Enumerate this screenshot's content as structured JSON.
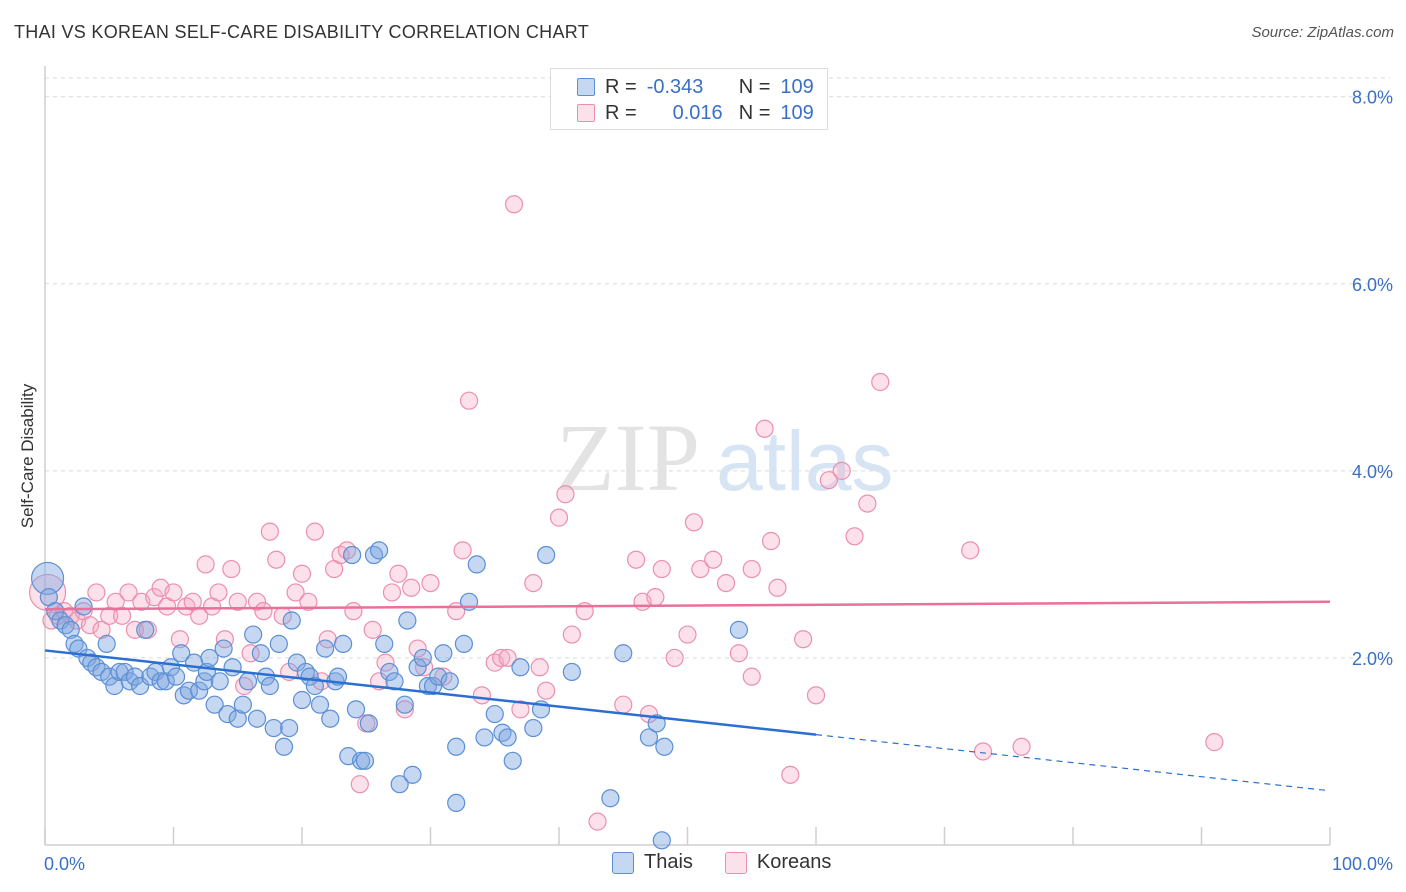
{
  "title": "THAI VS KOREAN SELF-CARE DISABILITY CORRELATION CHART",
  "source": "Source: ZipAtlas.com",
  "watermark": {
    "zip": "ZIP",
    "atlas": "atlas"
  },
  "legend": {
    "rows": [
      {
        "r_label": "R =",
        "r_value": "-0.343",
        "n_label": "N =",
        "n_value": "109",
        "color": "#7ea6e0"
      },
      {
        "r_label": "R =",
        "r_value": "0.016",
        "n_label": "N =",
        "n_value": "109",
        "color": "#f29ab7"
      }
    ]
  },
  "bottom_legend": {
    "thais": "Thais",
    "koreans": "Koreans"
  },
  "colors": {
    "thais_fill": "rgba(126,166,224,0.45)",
    "thais_stroke": "#5b8fd6",
    "thais_line": "#2a6fd1",
    "koreans_fill": "rgba(245,170,195,0.35)",
    "koreans_stroke": "#ec8fae",
    "koreans_line": "#e8709a",
    "axis_text": "#3b6fc7",
    "grid": "#d9d9d9"
  },
  "chart_data": {
    "type": "scatter",
    "title": "THAI VS KOREAN SELF-CARE DISABILITY CORRELATION CHART",
    "xlabel": "",
    "ylabel": "Self-Care Disability",
    "xlim": [
      0,
      100
    ],
    "ylim": [
      0,
      8.0
    ],
    "x_tick_labels": [
      "0.0%",
      "100.0%"
    ],
    "y_ticks": [
      2.0,
      4.0,
      6.0,
      8.0
    ],
    "y_tick_labels": [
      "2.0%",
      "4.0%",
      "6.0%",
      "8.0%"
    ],
    "grid": true,
    "legend_placement": "top-center",
    "series": [
      {
        "name": "Thais",
        "r": -0.343,
        "n": 109,
        "trend": {
          "x0": 0,
          "y0": 2.08,
          "x1": 60,
          "y1": 1.18,
          "dash_to": 100,
          "dash_y": 0.58
        },
        "points": [
          [
            0.2,
            2.85
          ],
          [
            0.3,
            2.65
          ],
          [
            0.8,
            2.5
          ],
          [
            1.2,
            2.4
          ],
          [
            1.6,
            2.35
          ],
          [
            2.0,
            2.3
          ],
          [
            2.3,
            2.15
          ],
          [
            2.6,
            2.1
          ],
          [
            3.0,
            2.55
          ],
          [
            3.3,
            2.0
          ],
          [
            3.6,
            1.95
          ],
          [
            4.0,
            1.9
          ],
          [
            4.4,
            1.85
          ],
          [
            4.8,
            2.15
          ],
          [
            5.0,
            1.8
          ],
          [
            5.4,
            1.7
          ],
          [
            5.8,
            1.85
          ],
          [
            6.2,
            1.85
          ],
          [
            6.6,
            1.75
          ],
          [
            7.0,
            1.8
          ],
          [
            7.4,
            1.7
          ],
          [
            7.8,
            2.3
          ],
          [
            8.2,
            1.8
          ],
          [
            8.6,
            1.85
          ],
          [
            9.0,
            1.75
          ],
          [
            9.4,
            1.75
          ],
          [
            9.8,
            1.9
          ],
          [
            10.2,
            1.8
          ],
          [
            10.6,
            2.05
          ],
          [
            10.8,
            1.6
          ],
          [
            11.2,
            1.65
          ],
          [
            11.6,
            1.95
          ],
          [
            12.0,
            1.65
          ],
          [
            12.4,
            1.75
          ],
          [
            12.6,
            1.85
          ],
          [
            12.8,
            2.0
          ],
          [
            13.2,
            1.5
          ],
          [
            13.6,
            1.75
          ],
          [
            13.9,
            2.1
          ],
          [
            14.2,
            1.4
          ],
          [
            14.6,
            1.9
          ],
          [
            15.0,
            1.35
          ],
          [
            15.4,
            1.5
          ],
          [
            15.8,
            1.75
          ],
          [
            16.2,
            2.25
          ],
          [
            16.5,
            1.35
          ],
          [
            16.8,
            2.05
          ],
          [
            17.2,
            1.8
          ],
          [
            17.5,
            1.7
          ],
          [
            17.8,
            1.25
          ],
          [
            18.2,
            2.15
          ],
          [
            18.6,
            1.05
          ],
          [
            19.0,
            1.25
          ],
          [
            19.2,
            2.4
          ],
          [
            19.6,
            1.95
          ],
          [
            20.0,
            1.55
          ],
          [
            20.3,
            1.85
          ],
          [
            20.6,
            1.8
          ],
          [
            21.0,
            1.7
          ],
          [
            21.4,
            1.5
          ],
          [
            21.8,
            2.1
          ],
          [
            22.2,
            1.35
          ],
          [
            22.6,
            1.75
          ],
          [
            22.8,
            1.8
          ],
          [
            23.2,
            2.15
          ],
          [
            23.6,
            0.95
          ],
          [
            23.9,
            3.1
          ],
          [
            24.2,
            1.45
          ],
          [
            24.6,
            0.9
          ],
          [
            24.9,
            0.9
          ],
          [
            25.2,
            1.3
          ],
          [
            25.6,
            3.1
          ],
          [
            26.0,
            3.15
          ],
          [
            26.4,
            2.15
          ],
          [
            26.8,
            1.85
          ],
          [
            27.2,
            1.75
          ],
          [
            27.6,
            0.65
          ],
          [
            28.0,
            1.5
          ],
          [
            28.2,
            2.4
          ],
          [
            28.6,
            0.75
          ],
          [
            29.0,
            1.9
          ],
          [
            29.4,
            2.0
          ],
          [
            29.8,
            1.7
          ],
          [
            30.2,
            1.7
          ],
          [
            30.6,
            1.8
          ],
          [
            31.0,
            2.05
          ],
          [
            31.5,
            1.75
          ],
          [
            32.0,
            1.05
          ],
          [
            32.6,
            2.15
          ],
          [
            33.0,
            2.6
          ],
          [
            33.6,
            3.0
          ],
          [
            34.2,
            1.15
          ],
          [
            35.0,
            1.4
          ],
          [
            35.6,
            1.2
          ],
          [
            36.0,
            1.15
          ],
          [
            36.4,
            0.9
          ],
          [
            37.0,
            1.9
          ],
          [
            38.0,
            1.25
          ],
          [
            38.6,
            1.45
          ],
          [
            39.0,
            3.1
          ],
          [
            44.0,
            0.5
          ],
          [
            45.0,
            2.05
          ],
          [
            47.0,
            1.15
          ],
          [
            47.6,
            1.3
          ],
          [
            48.0,
            0.05
          ],
          [
            48.2,
            1.05
          ],
          [
            54.0,
            2.3
          ],
          [
            32.0,
            0.45
          ],
          [
            41.0,
            1.85
          ]
        ]
      },
      {
        "name": "Koreans",
        "r": 0.016,
        "n": 109,
        "trend": {
          "x0": 0,
          "y0": 2.52,
          "x1": 100,
          "y1": 2.6
        },
        "points": [
          [
            0.2,
            2.7
          ],
          [
            0.5,
            2.4
          ],
          [
            1.0,
            2.45
          ],
          [
            1.5,
            2.5
          ],
          [
            2.0,
            2.45
          ],
          [
            2.5,
            2.4
          ],
          [
            3.0,
            2.5
          ],
          [
            3.5,
            2.35
          ],
          [
            4.0,
            2.7
          ],
          [
            4.4,
            2.3
          ],
          [
            5.0,
            2.45
          ],
          [
            5.5,
            2.6
          ],
          [
            6.0,
            2.45
          ],
          [
            6.5,
            2.7
          ],
          [
            7.0,
            2.3
          ],
          [
            7.5,
            2.6
          ],
          [
            8.0,
            2.3
          ],
          [
            8.5,
            2.65
          ],
          [
            9.0,
            2.75
          ],
          [
            9.5,
            2.55
          ],
          [
            10.0,
            2.7
          ],
          [
            10.5,
            2.2
          ],
          [
            11.0,
            2.55
          ],
          [
            11.5,
            2.6
          ],
          [
            12.0,
            2.45
          ],
          [
            12.5,
            3.0
          ],
          [
            13.0,
            2.55
          ],
          [
            13.5,
            2.7
          ],
          [
            14.0,
            2.2
          ],
          [
            14.5,
            2.95
          ],
          [
            15.0,
            2.6
          ],
          [
            15.5,
            1.7
          ],
          [
            16.0,
            2.05
          ],
          [
            16.5,
            2.6
          ],
          [
            17.0,
            2.5
          ],
          [
            17.5,
            3.35
          ],
          [
            18.0,
            3.05
          ],
          [
            18.5,
            2.45
          ],
          [
            19.0,
            1.85
          ],
          [
            19.5,
            2.7
          ],
          [
            20.0,
            2.9
          ],
          [
            20.5,
            2.6
          ],
          [
            21.0,
            3.35
          ],
          [
            21.5,
            1.75
          ],
          [
            22.0,
            2.2
          ],
          [
            22.5,
            2.95
          ],
          [
            23.0,
            3.1
          ],
          [
            23.5,
            3.15
          ],
          [
            24.0,
            2.5
          ],
          [
            24.5,
            0.65
          ],
          [
            25.0,
            1.3
          ],
          [
            25.5,
            2.3
          ],
          [
            26.0,
            1.75
          ],
          [
            26.5,
            1.95
          ],
          [
            27.0,
            2.7
          ],
          [
            27.5,
            2.9
          ],
          [
            28.0,
            1.45
          ],
          [
            28.5,
            2.75
          ],
          [
            29.0,
            2.1
          ],
          [
            29.5,
            1.9
          ],
          [
            30.0,
            2.8
          ],
          [
            31.0,
            1.8
          ],
          [
            32.0,
            2.5
          ],
          [
            32.5,
            3.15
          ],
          [
            33.0,
            4.75
          ],
          [
            34.0,
            1.6
          ],
          [
            35.0,
            1.95
          ],
          [
            35.5,
            2.0
          ],
          [
            36.0,
            2.0
          ],
          [
            36.5,
            6.85
          ],
          [
            37.0,
            1.45
          ],
          [
            38.0,
            2.8
          ],
          [
            38.5,
            1.9
          ],
          [
            39.0,
            1.65
          ],
          [
            40.0,
            3.5
          ],
          [
            40.5,
            3.75
          ],
          [
            41.0,
            2.25
          ],
          [
            42.0,
            2.5
          ],
          [
            43.0,
            0.25
          ],
          [
            45.0,
            1.5
          ],
          [
            46.0,
            3.05
          ],
          [
            46.5,
            2.6
          ],
          [
            47.0,
            1.4
          ],
          [
            47.5,
            2.65
          ],
          [
            48.0,
            2.95
          ],
          [
            49.0,
            2.0
          ],
          [
            50.0,
            2.25
          ],
          [
            50.5,
            3.45
          ],
          [
            51.0,
            2.95
          ],
          [
            52.0,
            3.05
          ],
          [
            53.0,
            2.8
          ],
          [
            54.0,
            2.05
          ],
          [
            55.0,
            2.95
          ],
          [
            56.0,
            4.45
          ],
          [
            56.5,
            3.25
          ],
          [
            57.0,
            2.75
          ],
          [
            58.0,
            0.75
          ],
          [
            59.0,
            2.2
          ],
          [
            60.0,
            1.6
          ],
          [
            61.0,
            3.9
          ],
          [
            62.0,
            4.0
          ],
          [
            63.0,
            3.3
          ],
          [
            64.0,
            3.65
          ],
          [
            65.0,
            4.95
          ],
          [
            72.0,
            3.15
          ],
          [
            73.0,
            1.0
          ],
          [
            76.0,
            1.05
          ],
          [
            91.0,
            1.1
          ],
          [
            55.0,
            1.8
          ]
        ]
      }
    ]
  }
}
